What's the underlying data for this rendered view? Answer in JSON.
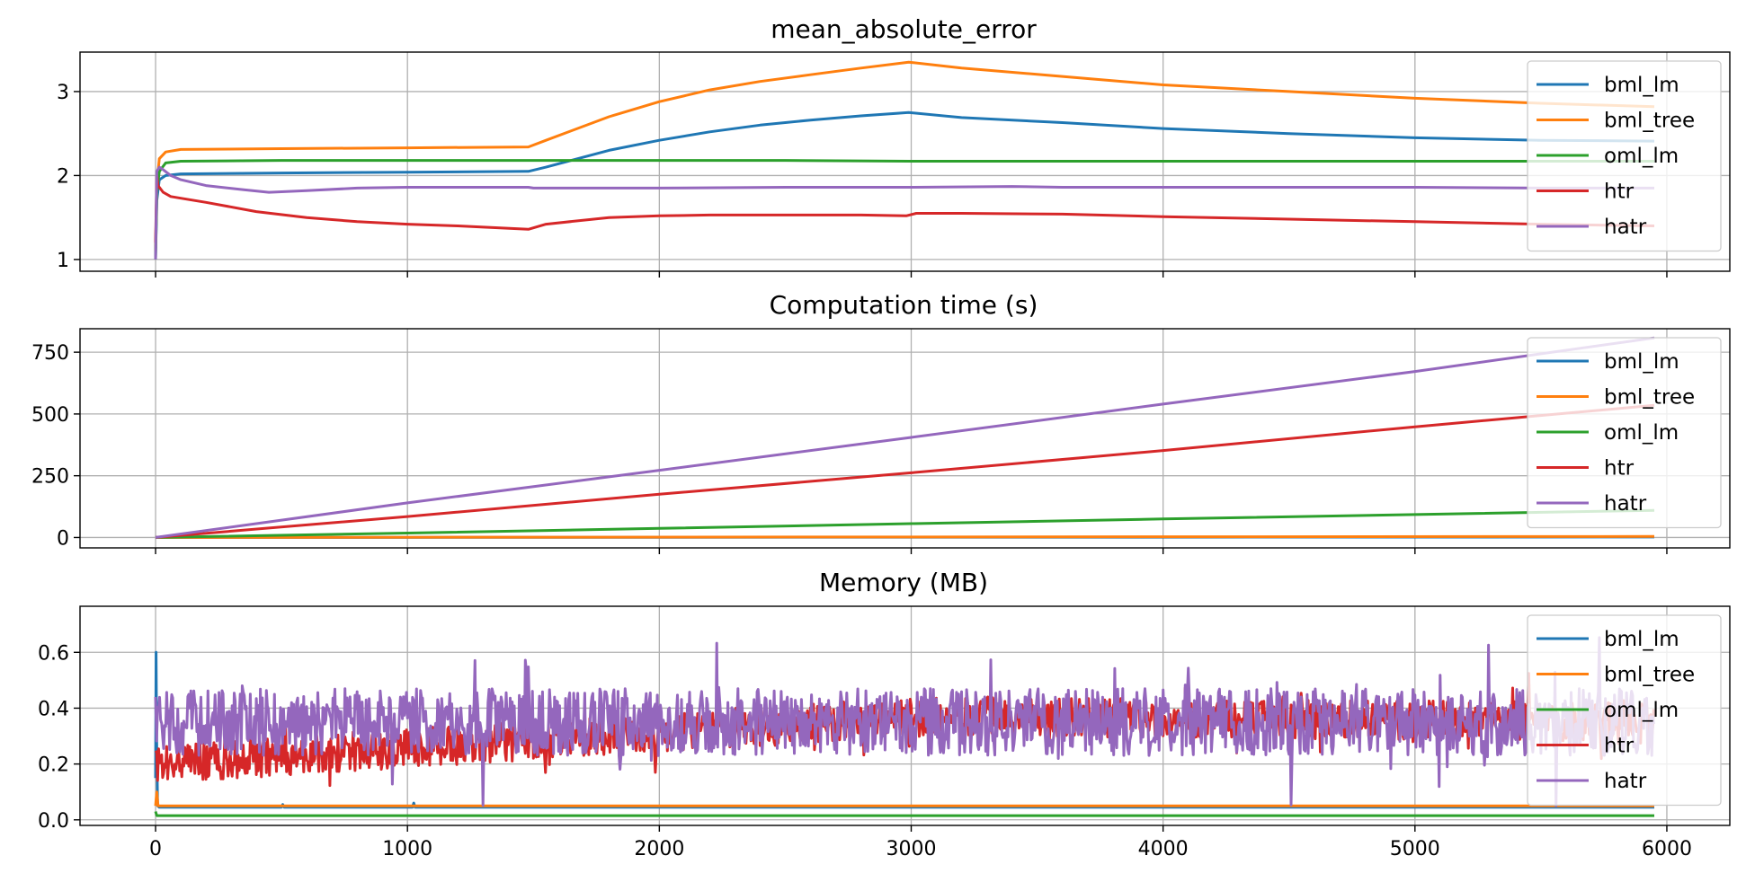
{
  "chart_data": [
    {
      "type": "line",
      "title": "mean_absolute_error",
      "xlim": [
        -300,
        6250
      ],
      "ylim": [
        0.86,
        3.47
      ],
      "xticks": [
        0,
        1000,
        2000,
        3000,
        4000,
        5000,
        6000
      ],
      "xtick_labels": [],
      "yticks": [
        1,
        2,
        3
      ],
      "ytick_labels": [
        "1",
        "2",
        "3"
      ],
      "grid": true,
      "legend_position": "upper-right",
      "series": [
        {
          "name": "bml_lm",
          "color": "#1f77b4",
          "x": [
            0,
            5,
            15,
            40,
            100,
            500,
            1000,
            1480,
            1550,
            1800,
            2000,
            2200,
            2400,
            2600,
            2800,
            2990,
            3200,
            3600,
            4000,
            4500,
            5000,
            5500,
            5950
          ],
          "y": [
            1.0,
            1.7,
            1.95,
            2.0,
            2.02,
            2.03,
            2.04,
            2.05,
            2.1,
            2.3,
            2.42,
            2.52,
            2.6,
            2.66,
            2.71,
            2.75,
            2.69,
            2.63,
            2.56,
            2.5,
            2.45,
            2.42,
            2.41
          ]
        },
        {
          "name": "bml_tree",
          "color": "#ff7f0e",
          "x": [
            0,
            5,
            15,
            40,
            100,
            500,
            1000,
            1480,
            1550,
            1800,
            2000,
            2200,
            2400,
            2600,
            2800,
            2990,
            3200,
            3600,
            4000,
            4500,
            5000,
            5500,
            5950
          ],
          "y": [
            1.1,
            1.9,
            2.2,
            2.28,
            2.31,
            2.32,
            2.33,
            2.34,
            2.42,
            2.7,
            2.88,
            3.02,
            3.12,
            3.2,
            3.28,
            3.35,
            3.28,
            3.18,
            3.08,
            3.0,
            2.92,
            2.86,
            2.82
          ]
        },
        {
          "name": "oml_lm",
          "color": "#2ca02c",
          "x": [
            0,
            5,
            15,
            40,
            100,
            500,
            1000,
            1500,
            2000,
            2500,
            3000,
            3500,
            4000,
            4500,
            5000,
            5500,
            5950
          ],
          "y": [
            1.0,
            1.8,
            2.05,
            2.15,
            2.17,
            2.18,
            2.18,
            2.18,
            2.18,
            2.18,
            2.17,
            2.17,
            2.17,
            2.17,
            2.17,
            2.17,
            2.17
          ]
        },
        {
          "name": "htr",
          "color": "#d62728",
          "x": [
            0,
            5,
            10,
            30,
            60,
            100,
            200,
            400,
            600,
            800,
            1000,
            1200,
            1480,
            1550,
            1800,
            2000,
            2200,
            2400,
            2600,
            2800,
            2980,
            3020,
            3200,
            3600,
            4000,
            4500,
            5000,
            5500,
            5950
          ],
          "y": [
            1.2,
            2.0,
            1.88,
            1.8,
            1.75,
            1.73,
            1.68,
            1.57,
            1.5,
            1.45,
            1.42,
            1.4,
            1.36,
            1.42,
            1.5,
            1.52,
            1.53,
            1.53,
            1.53,
            1.53,
            1.52,
            1.55,
            1.55,
            1.54,
            1.51,
            1.48,
            1.45,
            1.42,
            1.4
          ]
        },
        {
          "name": "hatr",
          "color": "#9467bd",
          "x": [
            0,
            5,
            15,
            30,
            60,
            100,
            200,
            350,
            450,
            600,
            800,
            1000,
            1200,
            1480,
            1500,
            1800,
            2000,
            2500,
            3000,
            3400,
            3600,
            4000,
            4500,
            5000,
            5500,
            5950
          ],
          "y": [
            1.0,
            2.05,
            2.1,
            2.07,
            2.0,
            1.95,
            1.88,
            1.83,
            1.8,
            1.82,
            1.85,
            1.86,
            1.86,
            1.86,
            1.85,
            1.85,
            1.85,
            1.86,
            1.86,
            1.87,
            1.86,
            1.86,
            1.86,
            1.86,
            1.85,
            1.85
          ]
        }
      ],
      "legend": [
        "bml_lm",
        "bml_tree",
        "oml_lm",
        "htr",
        "hatr"
      ]
    },
    {
      "type": "line",
      "title": "Computation time (s)",
      "xlim": [
        -300,
        6250
      ],
      "ylim": [
        -42,
        845
      ],
      "xticks": [
        0,
        1000,
        2000,
        3000,
        4000,
        5000,
        6000
      ],
      "xtick_labels": [],
      "yticks": [
        0,
        250,
        500,
        750
      ],
      "ytick_labels": [
        "0",
        "250",
        "500",
        "750"
      ],
      "grid": true,
      "legend_position": "upper-right",
      "series": [
        {
          "name": "bml_lm",
          "color": "#1f77b4",
          "x": [
            0,
            5950
          ],
          "y": [
            0,
            2
          ]
        },
        {
          "name": "bml_tree",
          "color": "#ff7f0e",
          "x": [
            0,
            5950
          ],
          "y": [
            0,
            4
          ]
        },
        {
          "name": "oml_lm",
          "color": "#2ca02c",
          "x": [
            0,
            1000,
            2000,
            3000,
            4000,
            5000,
            5950
          ],
          "y": [
            0,
            18,
            37,
            56,
            75,
            93,
            110
          ]
        },
        {
          "name": "htr",
          "color": "#d62728",
          "x": [
            0,
            1000,
            2000,
            3000,
            4000,
            5000,
            5950
          ],
          "y": [
            0,
            85,
            175,
            262,
            352,
            448,
            535
          ]
        },
        {
          "name": "hatr",
          "color": "#9467bd",
          "x": [
            0,
            1000,
            2000,
            3000,
            4000,
            5000,
            5950
          ],
          "y": [
            0,
            140,
            272,
            405,
            540,
            672,
            808
          ]
        }
      ],
      "legend": [
        "bml_lm",
        "bml_tree",
        "oml_lm",
        "htr",
        "hatr"
      ]
    },
    {
      "type": "line",
      "title": "Memory (MB)",
      "xlim": [
        -300,
        6250
      ],
      "ylim": [
        -0.02,
        0.765
      ],
      "xticks": [
        0,
        1000,
        2000,
        3000,
        4000,
        5000,
        6000
      ],
      "xtick_labels": [
        "0",
        "1000",
        "2000",
        "3000",
        "4000",
        "5000",
        "6000"
      ],
      "yticks": [
        0.0,
        0.2,
        0.4,
        0.6
      ],
      "ytick_labels": [
        "0.0",
        "0.2",
        "0.4",
        "0.6"
      ],
      "grid": true,
      "legend_position": "upper-right",
      "series": [
        {
          "name": "bml_lm",
          "color": "#1f77b4",
          "x": [
            0,
            2,
            4,
            8,
            15,
            500,
            505,
            510,
            1000,
            1020,
            1025,
            1030,
            5950
          ],
          "y": [
            0.15,
            0.6,
            0.3,
            0.05,
            0.045,
            0.045,
            0.055,
            0.045,
            0.045,
            0.045,
            0.06,
            0.045,
            0.045
          ]
        },
        {
          "name": "bml_tree",
          "color": "#ff7f0e",
          "x": [
            0,
            5,
            10,
            5950
          ],
          "y": [
            0.05,
            0.1,
            0.05,
            0.05
          ]
        },
        {
          "name": "oml_lm",
          "color": "#2ca02c",
          "x": [
            0,
            5,
            5950
          ],
          "y": [
            0.03,
            0.015,
            0.015
          ]
        },
        {
          "name": "htr",
          "color": "#d62728",
          "x": [
            0,
            3000,
            5950
          ],
          "y": [
            0.2,
            0.37,
            0.35
          ],
          "noise_amplitude": 0.07
        },
        {
          "name": "hatr",
          "color": "#9467bd",
          "x": [
            0,
            3000,
            5950
          ],
          "y": [
            0.35,
            0.35,
            0.35
          ],
          "noise_amplitude": 0.12
        }
      ],
      "legend": [
        "bml_lm",
        "bml_tree",
        "oml_lm",
        "htr",
        "hatr"
      ]
    }
  ]
}
